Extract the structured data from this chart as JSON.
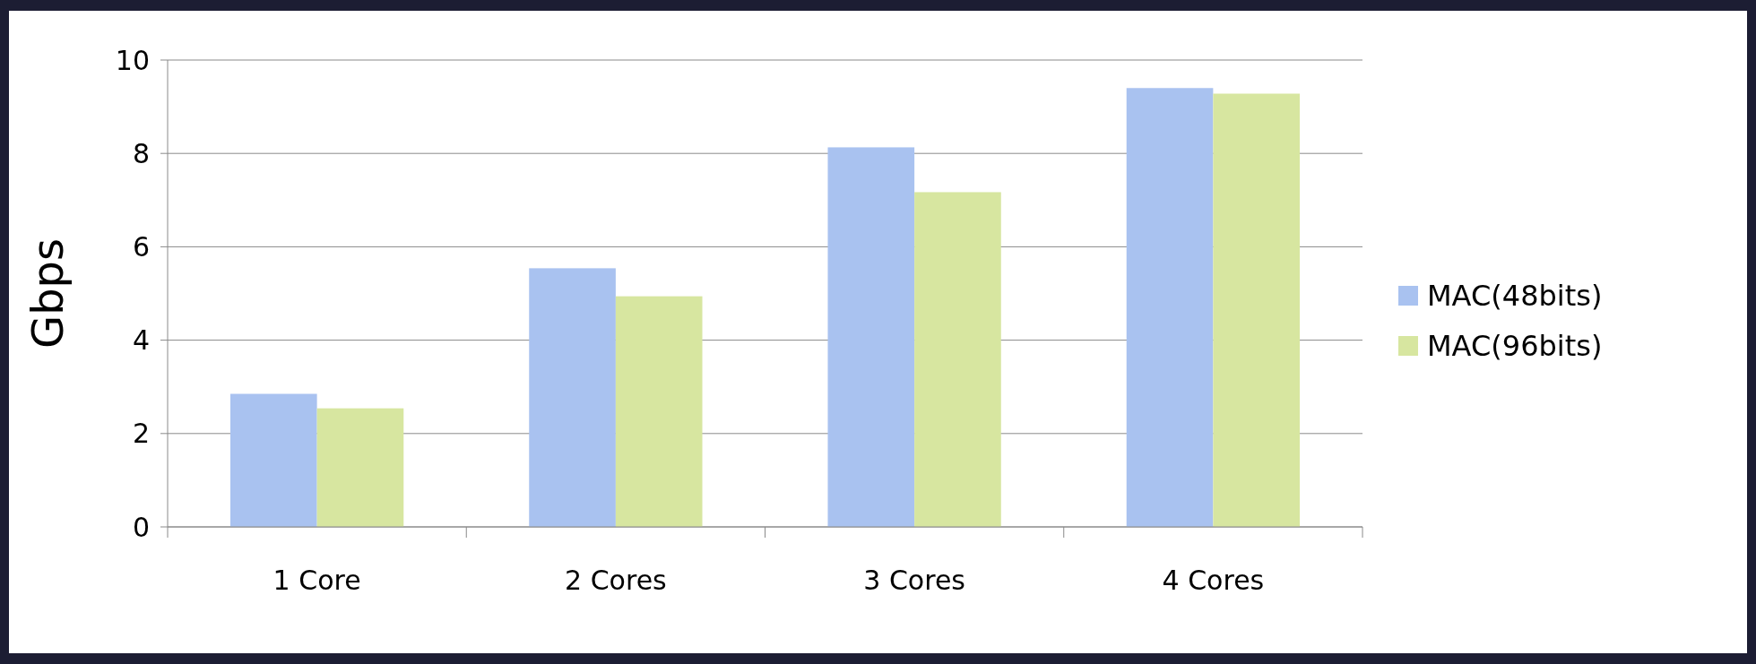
{
  "chart_data": {
    "type": "bar",
    "ylabel": "Gbps",
    "categories": [
      "1 Core",
      "2 Cores",
      "3 Cores",
      "4 Cores"
    ],
    "series": [
      {
        "name": "MAC(48bits)",
        "color": "#a9c2f0",
        "values": [
          2.85,
          5.54,
          8.13,
          9.4
        ]
      },
      {
        "name": "MAC(96bits)",
        "color": "#d7e6a0",
        "values": [
          2.54,
          4.94,
          7.17,
          9.28
        ]
      }
    ],
    "ylim": [
      0,
      10
    ],
    "yticks": [
      0,
      2,
      4,
      6,
      8,
      10
    ],
    "grid": "y",
    "legend": "right"
  }
}
